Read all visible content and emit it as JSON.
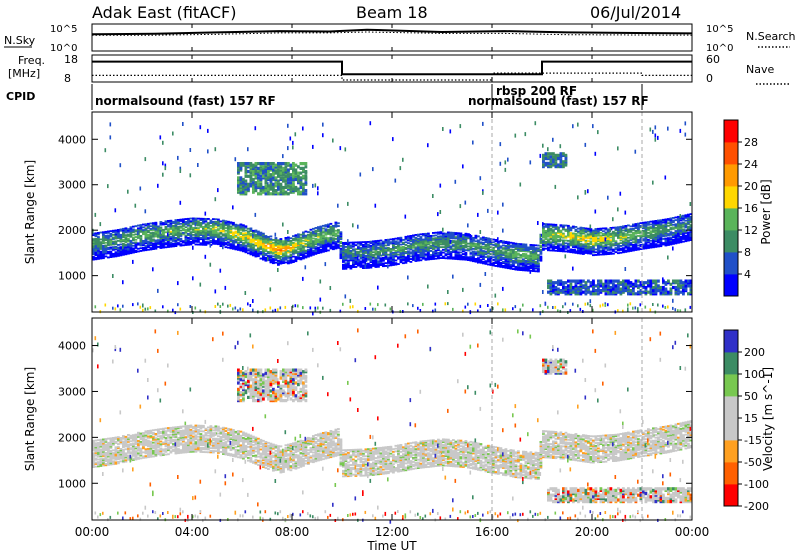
{
  "header": {
    "station": "Adak East (fitACF)",
    "beam": "Beam 18",
    "date": "06/Jul/2014"
  },
  "top_panels": {
    "nsky_label": "N.Sky",
    "nsky_ticks": [
      "10^5",
      "10^0"
    ],
    "nsearch_label": "N.Search",
    "nsearch_ticks": [
      "10^5",
      "10^0"
    ],
    "freq_label": "Freq.",
    "freq_unit": "[MHz]",
    "freq_ticks": [
      "18",
      "8"
    ],
    "nave_label": "Nave",
    "nave_ticks": [
      "60",
      "0"
    ],
    "cpid_label": "CPID"
  },
  "cpid_segments": [
    {
      "label": "normalsound (fast) 157 RF",
      "start_h": 0.0,
      "end_h": 16.0
    },
    {
      "label": "rbsp 200 RF",
      "start_h": 16.0,
      "end_h": 18.0
    },
    {
      "label": "normalsound (fast) 157 RF",
      "start_h": 16.0,
      "end_h": 22.0
    }
  ],
  "colors": {
    "power_scale": [
      "#0000ff",
      "#2050c8",
      "#3c8c64",
      "#5ab45a",
      "#ffd700",
      "#ff9a00",
      "#ff5000",
      "#ff0000"
    ],
    "velocity_scale": [
      "#3030c8",
      "#3c8c64",
      "#78c850",
      "#c8c8c8",
      "#c8c8c8",
      "#ffa020",
      "#ff6000",
      "#ff0000"
    ],
    "ground_scatter": "#c8c8c8"
  },
  "chart_data": [
    {
      "type": "line",
      "title": "Adak East (fitACF) Beam 18 06/Jul/2014",
      "series": [
        {
          "name": "N.Sky",
          "values": [
            3.2,
            3.3,
            3.6,
            3.9,
            3.8,
            4.2,
            3.7,
            3.9,
            3.6,
            3.4
          ]
        },
        {
          "name": "N.Search",
          "values": [
            3.0,
            3.0,
            3.2,
            3.5,
            3.5,
            3.7,
            3.4,
            3.4,
            3.1,
            3.0
          ]
        }
      ],
      "x": [
        0,
        2.5,
        5,
        7.5,
        9.5,
        11,
        14,
        16.5,
        19,
        24
      ],
      "ylim": [
        0,
        5
      ],
      "ylabel": "N.Sky"
    },
    {
      "type": "line",
      "series": [
        {
          "name": "Freq.",
          "steps": [
            {
              "x0": 0,
              "x1": 10,
              "y": 16
            },
            {
              "x0": 10,
              "x1": 18,
              "y": 10.5
            },
            {
              "x0": 18,
              "x1": 24,
              "y": 16
            }
          ]
        },
        {
          "name": "Nave",
          "steps": [
            {
              "x0": 0,
              "x1": 10,
              "y": 12
            },
            {
              "x0": 10,
              "x1": 16,
              "y": 0
            },
            {
              "x0": 16,
              "x1": 18,
              "y": 18
            },
            {
              "x0": 18,
              "x1": 22,
              "y": 18
            },
            {
              "x0": 22,
              "x1": 24,
              "y": 12
            }
          ]
        }
      ],
      "ylim_freq": [
        8,
        18
      ],
      "ylim_nave": [
        0,
        60
      ]
    },
    {
      "type": "heatmap",
      "title": "Power",
      "ylabel": "Slant Range [km]",
      "colorbar_label": "Power [dB]",
      "colorbar_ticks": [
        "28",
        "24",
        "20",
        "16",
        "12",
        "8",
        "4"
      ],
      "colorbar_range": [
        0,
        32
      ],
      "ylim": [
        200,
        4600
      ],
      "yticks": [
        "4000",
        "3000",
        "2000",
        "1000"
      ],
      "band": {
        "hours": [
          0,
          1,
          2,
          3,
          4,
          5,
          6,
          7,
          7.5,
          8,
          9,
          9.9,
          10,
          11,
          12,
          13,
          14,
          15,
          16,
          17,
          17.9,
          18,
          19,
          20,
          21,
          22,
          23,
          24
        ],
        "center": [
          1680,
          1760,
          1880,
          1960,
          2020,
          2000,
          1880,
          1650,
          1560,
          1620,
          1820,
          1950,
          1480,
          1500,
          1560,
          1660,
          1720,
          1680,
          1560,
          1460,
          1420,
          1900,
          1860,
          1780,
          1820,
          1920,
          2000,
          2120
        ],
        "peak_db": [
          12,
          12,
          14,
          14,
          14,
          16,
          18,
          22,
          24,
          20,
          16,
          14,
          10,
          10,
          12,
          12,
          12,
          12,
          12,
          14,
          14,
          16,
          18,
          20,
          16,
          14,
          12,
          10
        ]
      },
      "patches": [
        {
          "x0": 5.8,
          "x1": 8.6,
          "range0": 2800,
          "range1": 3500,
          "db": 10
        },
        {
          "x0": 18.0,
          "x1": 19.0,
          "range0": 3400,
          "range1": 3700,
          "db": 8
        },
        {
          "x0": 18.2,
          "x1": 24,
          "range0": 600,
          "range1": 900,
          "db": 6
        }
      ]
    },
    {
      "type": "heatmap",
      "title": "Velocity",
      "ylabel": "Slant Range [km]",
      "colorbar_label": "Velocity [m s^-1]",
      "colorbar_ticks": [
        "200",
        "100",
        "50",
        "15",
        "-15",
        "-50",
        "-100",
        "-200"
      ],
      "colorbar_range": [
        -250,
        250
      ],
      "ylim": [
        200,
        4600
      ],
      "yticks": [
        "4000",
        "3000",
        "2000",
        "1000"
      ],
      "xticks": [
        "00:00",
        "04:00",
        "08:00",
        "12:00",
        "16:00",
        "20:00",
        "00:00"
      ],
      "xlabel": "Time UT"
    }
  ]
}
